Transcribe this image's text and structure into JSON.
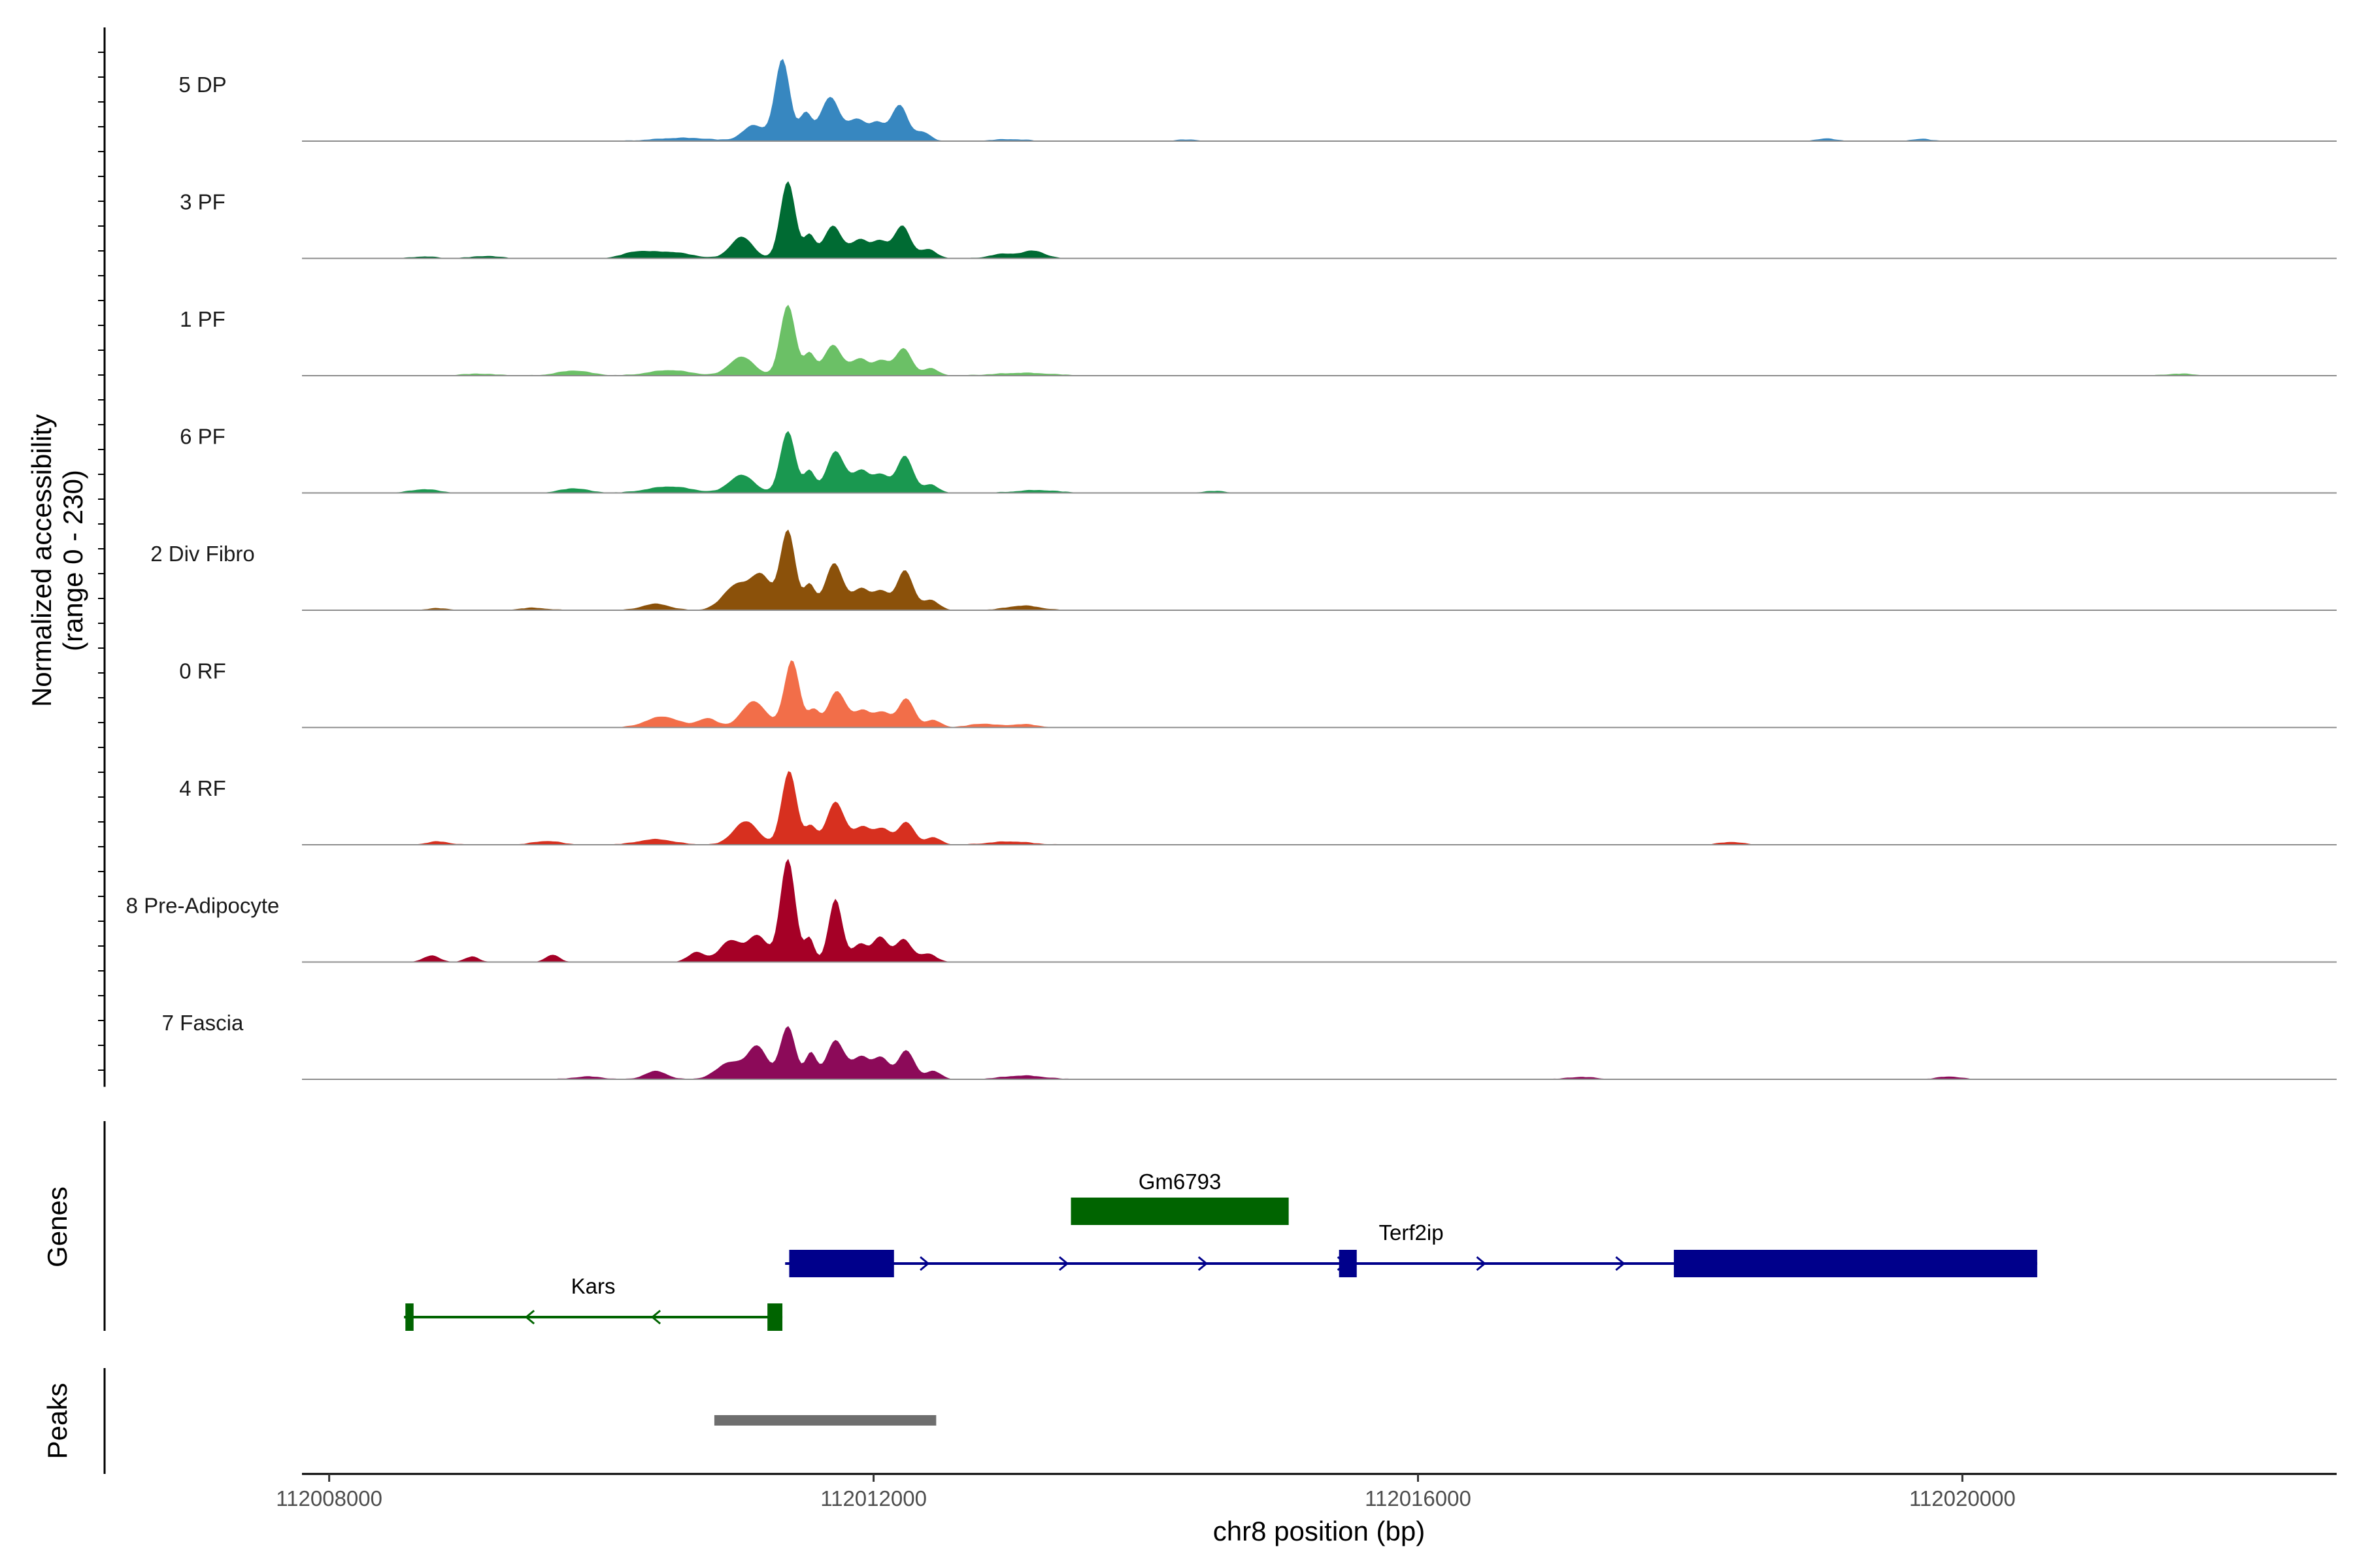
{
  "chart_data": {
    "type": "area",
    "title": "",
    "xlabel": "chr8 position (bp)",
    "ylabel": "Normalized accessibility\n(range 0 - 230)",
    "ylabel_line1": "Normalized accessibility",
    "ylabel_line2": "(range 0 - 230)",
    "ylim": [
      0,
      230
    ],
    "xlim": [
      112007800,
      112022750
    ],
    "x_ticks": [
      112008000,
      112012000,
      112016000,
      112020000
    ],
    "x_tick_labels": [
      "112008000",
      "112012000",
      "112016000",
      "112020000"
    ],
    "panel_titles": {
      "genes": "Genes",
      "peaks": "Peaks"
    },
    "tracks": [
      {
        "name": "5 DP",
        "color": "#3787C0",
        "peaks": [
          [
            112011120,
            35,
            80
          ],
          [
            112011330,
            182,
            55
          ],
          [
            112011500,
            60,
            45
          ],
          [
            112011680,
            98,
            70
          ],
          [
            112011880,
            48,
            65
          ],
          [
            112012030,
            38,
            55
          ],
          [
            112012190,
            80,
            60
          ],
          [
            112012360,
            20,
            55
          ],
          [
            112010600,
            7,
            200
          ],
          [
            112013000,
            4,
            120
          ],
          [
            112019000,
            6,
            60
          ],
          [
            112019700,
            5,
            60
          ],
          [
            112014300,
            3,
            80
          ]
        ]
      },
      {
        "name": "3 PF",
        "color": "#006B33",
        "peaks": [
          [
            112011030,
            48,
            80
          ],
          [
            112011370,
            172,
            55
          ],
          [
            112011530,
            50,
            40
          ],
          [
            112011700,
            72,
            65
          ],
          [
            112011900,
            42,
            65
          ],
          [
            112012050,
            36,
            55
          ],
          [
            112012210,
            72,
            60
          ],
          [
            112012400,
            20,
            60
          ],
          [
            112010500,
            14,
            150
          ],
          [
            112010250,
            12,
            100
          ],
          [
            112012960,
            10,
            100
          ],
          [
            112013180,
            16,
            80
          ],
          [
            112009150,
            5,
            100
          ],
          [
            112008700,
            4,
            80
          ]
        ]
      },
      {
        "name": "1 PF",
        "color": "#6BC066",
        "peaks": [
          [
            112011030,
            42,
            90
          ],
          [
            112011370,
            158,
            55
          ],
          [
            112011530,
            48,
            40
          ],
          [
            112011700,
            68,
            65
          ],
          [
            112011900,
            38,
            65
          ],
          [
            112012060,
            32,
            55
          ],
          [
            112012220,
            60,
            60
          ],
          [
            112012420,
            16,
            55
          ],
          [
            112009800,
            11,
            120
          ],
          [
            112010500,
            12,
            150
          ],
          [
            112013100,
            6,
            200
          ],
          [
            112009100,
            4,
            120
          ],
          [
            112021600,
            4,
            100
          ]
        ]
      },
      {
        "name": "6 PF",
        "color": "#1A9850",
        "peaks": [
          [
            112011030,
            40,
            90
          ],
          [
            112011370,
            138,
            55
          ],
          [
            112011530,
            48,
            40
          ],
          [
            112011720,
            92,
            65
          ],
          [
            112011910,
            50,
            65
          ],
          [
            112012060,
            38,
            55
          ],
          [
            112012230,
            82,
            60
          ],
          [
            112012420,
            18,
            55
          ],
          [
            112010500,
            14,
            160
          ],
          [
            112009800,
            10,
            100
          ],
          [
            112008700,
            8,
            100
          ],
          [
            112013200,
            6,
            150
          ],
          [
            112014500,
            4,
            80
          ]
        ]
      },
      {
        "name": "2 Div Fibro",
        "color": "#8B510A",
        "peaks": [
          [
            112011000,
            58,
            100
          ],
          [
            112011180,
            70,
            70
          ],
          [
            112011370,
            178,
            55
          ],
          [
            112011530,
            55,
            40
          ],
          [
            112011710,
            104,
            65
          ],
          [
            112011910,
            48,
            65
          ],
          [
            112012060,
            40,
            55
          ],
          [
            112012230,
            88,
            60
          ],
          [
            112012420,
            22,
            60
          ],
          [
            112010400,
            14,
            100
          ],
          [
            112013100,
            10,
            120
          ],
          [
            112009500,
            5,
            100
          ],
          [
            112008800,
            4,
            80
          ]
        ]
      },
      {
        "name": "0 RF",
        "color": "#F26E49",
        "peaks": [
          [
            112010450,
            24,
            120
          ],
          [
            112010780,
            20,
            70
          ],
          [
            112011120,
            58,
            90
          ],
          [
            112011400,
            150,
            55
          ],
          [
            112011560,
            38,
            40
          ],
          [
            112011730,
            80,
            65
          ],
          [
            112011920,
            38,
            65
          ],
          [
            112012070,
            32,
            55
          ],
          [
            112012240,
            64,
            60
          ],
          [
            112012440,
            16,
            55
          ],
          [
            112012800,
            8,
            100
          ],
          [
            112013100,
            7,
            100
          ]
        ]
      },
      {
        "name": "4 RF",
        "color": "#D7301F",
        "peaks": [
          [
            112011060,
            52,
            90
          ],
          [
            112011380,
            165,
            55
          ],
          [
            112011540,
            40,
            40
          ],
          [
            112011720,
            95,
            65
          ],
          [
            112011920,
            40,
            65
          ],
          [
            112012070,
            34,
            55
          ],
          [
            112012240,
            50,
            60
          ],
          [
            112012440,
            16,
            55
          ],
          [
            112010400,
            12,
            130
          ],
          [
            112009600,
            8,
            100
          ],
          [
            112008800,
            7,
            80
          ],
          [
            112013000,
            7,
            150
          ],
          [
            112018300,
            6,
            80
          ]
        ]
      },
      {
        "name": "8 Pre-Adipocyte",
        "color": "#A50026",
        "peaks": [
          [
            112010700,
            22,
            60
          ],
          [
            112010950,
            48,
            80
          ],
          [
            112011150,
            58,
            70
          ],
          [
            112011370,
            230,
            55
          ],
          [
            112011530,
            52,
            35
          ],
          [
            112011720,
            140,
            50
          ],
          [
            112011900,
            40,
            55
          ],
          [
            112012050,
            55,
            55
          ],
          [
            112012220,
            50,
            60
          ],
          [
            112012400,
            18,
            60
          ],
          [
            112009640,
            16,
            50
          ],
          [
            112008750,
            14,
            60
          ],
          [
            112009050,
            12,
            50
          ]
        ]
      },
      {
        "name": "7 Fascia",
        "color": "#8C0A59",
        "peaks": [
          [
            112010400,
            18,
            80
          ],
          [
            112010950,
            38,
            100
          ],
          [
            112011150,
            70,
            70
          ],
          [
            112011370,
            118,
            55
          ],
          [
            112011540,
            58,
            40
          ],
          [
            112011720,
            86,
            65
          ],
          [
            112011910,
            50,
            65
          ],
          [
            112012060,
            46,
            55
          ],
          [
            112012240,
            64,
            60
          ],
          [
            112012440,
            18,
            55
          ],
          [
            112013100,
            8,
            150
          ],
          [
            112009900,
            6,
            100
          ],
          [
            112017200,
            5,
            100
          ],
          [
            112019900,
            6,
            80
          ]
        ]
      }
    ],
    "genes": [
      {
        "name": "Gm6793",
        "strand": "+",
        "color": "#006400",
        "row": 0,
        "start": 112013450,
        "end": 112015050,
        "exons": [
          [
            112013450,
            112015050
          ]
        ]
      },
      {
        "name": "Terf2ip",
        "strand": "+",
        "color": "#00008B",
        "row": 1,
        "start": 112011350,
        "end": 112020550,
        "exons": [
          [
            112011380,
            112012150
          ],
          [
            112015420,
            112015550
          ],
          [
            112017880,
            112020550
          ]
        ]
      },
      {
        "name": "Kars",
        "strand": "-",
        "color": "#006400",
        "row": 2,
        "start": 112008550,
        "end": 112011330,
        "exons": [
          [
            112008560,
            112008620
          ],
          [
            112011220,
            112011330
          ]
        ]
      }
    ],
    "peaks_track": [
      {
        "start": 112010830,
        "end": 112012460,
        "color": "#6E6E6E"
      }
    ]
  }
}
